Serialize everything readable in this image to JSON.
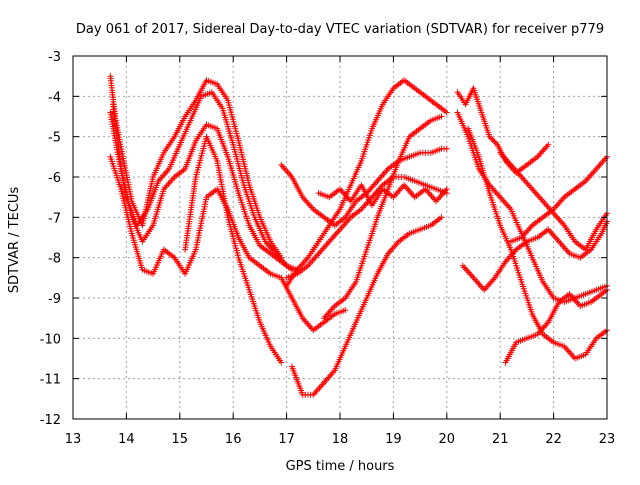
{
  "chart_data": {
    "type": "scatter",
    "title": "Day 061 of 2017, Sidereal Day-to-day VTEC variation (SDTVAR) for receiver p779",
    "xlabel": "GPS time / hours",
    "ylabel": "SDTVAR / TECUs",
    "xlim": [
      13,
      23
    ],
    "ylim": [
      -12,
      -3
    ],
    "x_ticks": [
      "13",
      "14",
      "15",
      "16",
      "17",
      "18",
      "19",
      "20",
      "21",
      "22",
      "23"
    ],
    "y_ticks": [
      "-3",
      "-4",
      "-5",
      "-6",
      "-7",
      "-8",
      "-9",
      "-10",
      "-11",
      "-12"
    ],
    "grid": true,
    "legend": "none",
    "marker": "plus",
    "color": "#ff0000",
    "series": [
      {
        "x": [
          13.7,
          13.8,
          13.95,
          14.1,
          14.3,
          14.5,
          14.7,
          14.9,
          15.1,
          15.3,
          15.5,
          15.7,
          15.9,
          16.1,
          16.3,
          16.5,
          16.7,
          16.9
        ],
        "y": [
          -3.5,
          -4.6,
          -5.6,
          -6.6,
          -7.2,
          -6.0,
          -5.4,
          -5.0,
          -4.5,
          -4.1,
          -3.6,
          -3.7,
          -4.1,
          -5.1,
          -6.2,
          -7.0,
          -7.6,
          -8.0
        ]
      },
      {
        "x": [
          13.7,
          13.85,
          14.0,
          14.2,
          14.4,
          14.6,
          14.8,
          15.0,
          15.2,
          15.4,
          15.6,
          15.8,
          16.0,
          16.2,
          16.4,
          16.6,
          16.8,
          17.0,
          17.2
        ],
        "y": [
          -4.4,
          -5.5,
          -6.5,
          -7.2,
          -6.8,
          -6.1,
          -5.8,
          -5.2,
          -4.6,
          -4.0,
          -3.9,
          -4.3,
          -5.2,
          -6.2,
          -7.0,
          -7.6,
          -7.9,
          -8.2,
          -8.3
        ]
      },
      {
        "x": [
          13.75,
          13.9,
          14.1,
          14.3,
          14.5,
          14.7,
          14.9,
          15.1,
          15.3,
          15.5,
          15.7,
          15.9,
          16.1,
          16.3,
          16.5,
          16.7,
          16.9,
          17.1
        ],
        "y": [
          -4.2,
          -5.8,
          -7.0,
          -7.6,
          -7.2,
          -6.3,
          -6.0,
          -5.8,
          -5.1,
          -4.7,
          -4.8,
          -5.5,
          -6.4,
          -7.2,
          -7.7,
          -7.9,
          -8.1,
          -8.3
        ]
      },
      {
        "x": [
          13.7,
          13.9,
          14.1,
          14.3,
          14.5,
          14.7,
          14.9,
          15.1,
          15.3,
          15.5,
          15.7,
          15.9,
          16.1,
          16.3,
          16.5,
          16.7,
          16.9,
          17.1,
          17.3,
          17.5,
          17.7,
          17.9,
          18.1
        ],
        "y": [
          -5.5,
          -6.3,
          -7.4,
          -8.3,
          -8.4,
          -7.8,
          -8.0,
          -8.4,
          -7.8,
          -6.5,
          -6.3,
          -6.8,
          -7.5,
          -8.0,
          -8.2,
          -8.4,
          -8.5,
          -9.0,
          -9.5,
          -9.8,
          -9.6,
          -9.4,
          -9.3
        ]
      },
      {
        "x": [
          15.1,
          15.3,
          15.5,
          15.7,
          15.9,
          16.1,
          16.3,
          16.5,
          16.7,
          16.9
        ],
        "y": [
          -7.8,
          -6.0,
          -5.0,
          -5.6,
          -7.0,
          -8.0,
          -8.8,
          -9.6,
          -10.2,
          -10.6
        ]
      },
      {
        "x": [
          16.9,
          17.1,
          17.3,
          17.5,
          17.7,
          17.9,
          18.1,
          18.3,
          18.5,
          18.7,
          18.9,
          19.1,
          19.3,
          19.5,
          19.7,
          19.9,
          20.0
        ],
        "y": [
          -5.7,
          -6.0,
          -6.5,
          -6.8,
          -7.0,
          -7.2,
          -7.0,
          -6.6,
          -6.4,
          -6.1,
          -5.8,
          -5.6,
          -5.5,
          -5.4,
          -5.4,
          -5.3,
          -5.3
        ]
      },
      {
        "x": [
          17.0,
          17.2,
          17.4,
          17.6,
          17.8,
          18.0,
          18.2,
          18.4,
          18.6,
          18.8,
          19.0,
          19.2,
          19.4,
          19.6,
          19.8,
          20.0
        ],
        "y": [
          -8.7,
          -8.3,
          -8.0,
          -7.6,
          -7.2,
          -6.8,
          -6.2,
          -5.6,
          -4.8,
          -4.2,
          -3.8,
          -3.6,
          -3.8,
          -4.0,
          -4.2,
          -4.4
        ]
      },
      {
        "x": [
          17.0,
          17.2,
          17.4,
          17.6,
          17.8,
          18.0,
          18.2,
          18.4,
          18.6,
          18.8,
          19.0,
          19.2,
          19.4,
          19.6,
          19.8,
          20.0
        ],
        "y": [
          -8.5,
          -8.4,
          -8.2,
          -7.9,
          -7.6,
          -7.3,
          -7.0,
          -6.8,
          -6.5,
          -6.2,
          -6.0,
          -6.0,
          -6.1,
          -6.2,
          -6.3,
          -6.4
        ]
      },
      {
        "x": [
          17.1,
          17.3,
          17.5,
          17.7,
          17.9,
          18.1,
          18.3,
          18.5,
          18.7,
          18.9,
          19.1,
          19.3,
          19.5,
          19.7,
          19.9
        ],
        "y": [
          -10.7,
          -11.4,
          -11.4,
          -11.1,
          -10.8,
          -10.2,
          -9.6,
          -9.0,
          -8.4,
          -7.9,
          -7.6,
          -7.4,
          -7.3,
          -7.2,
          -7.0
        ]
      },
      {
        "x": [
          17.6,
          17.8,
          18.0,
          18.2,
          18.4,
          18.6,
          18.8,
          19.0,
          19.2,
          19.4,
          19.6,
          19.8,
          20.0
        ],
        "y": [
          -6.4,
          -6.5,
          -6.3,
          -6.6,
          -6.2,
          -6.7,
          -6.3,
          -6.5,
          -6.2,
          -6.5,
          -6.3,
          -6.6,
          -6.3
        ]
      },
      {
        "x": [
          17.7,
          17.9,
          18.1,
          18.3,
          18.5,
          18.7,
          18.9,
          19.1,
          19.3,
          19.5,
          19.7,
          19.9
        ],
        "y": [
          -9.5,
          -9.2,
          -9.0,
          -8.6,
          -7.8,
          -7.0,
          -6.3,
          -5.6,
          -5.0,
          -4.8,
          -4.6,
          -4.5
        ]
      },
      {
        "x": [
          20.2,
          20.35,
          20.5,
          20.65,
          20.8,
          20.95,
          21.1,
          21.3,
          21.5,
          21.7,
          21.9
        ],
        "y": [
          -3.9,
          -4.2,
          -3.8,
          -4.4,
          -5.0,
          -5.2,
          -5.6,
          -5.9,
          -5.7,
          -5.5,
          -5.2
        ]
      },
      {
        "x": [
          20.2,
          20.4,
          20.6,
          20.8,
          21.0,
          21.2,
          21.4,
          21.6,
          21.8,
          22.0,
          22.2,
          22.4,
          22.6,
          22.8,
          23.0
        ],
        "y": [
          -4.4,
          -5.0,
          -5.8,
          -6.2,
          -6.5,
          -6.8,
          -7.4,
          -8.0,
          -8.6,
          -9.0,
          -9.1,
          -9.0,
          -8.9,
          -8.8,
          -8.7
        ]
      },
      {
        "x": [
          20.3,
          20.5,
          20.7,
          20.9,
          21.1,
          21.3,
          21.5,
          21.7,
          21.9,
          22.1,
          22.3,
          22.5,
          22.7,
          22.9,
          23.0
        ],
        "y": [
          -8.2,
          -8.5,
          -8.8,
          -8.5,
          -8.1,
          -7.8,
          -7.6,
          -7.5,
          -7.3,
          -7.6,
          -7.9,
          -8.0,
          -7.8,
          -7.4,
          -7.1
        ]
      },
      {
        "x": [
          20.4,
          20.6,
          20.8,
          21.0,
          21.2,
          21.4,
          21.6,
          21.8,
          22.0,
          22.2,
          22.4,
          22.6,
          22.8,
          23.0
        ],
        "y": [
          -4.8,
          -5.5,
          -6.4,
          -7.2,
          -7.8,
          -8.6,
          -9.4,
          -9.9,
          -10.1,
          -10.2,
          -10.5,
          -10.4,
          -10.0,
          -9.8
        ]
      },
      {
        "x": [
          21.1,
          21.3,
          21.5,
          21.7,
          21.9,
          22.1,
          22.3,
          22.5,
          22.7,
          22.9,
          23.0
        ],
        "y": [
          -10.6,
          -10.1,
          -10.0,
          -9.9,
          -9.6,
          -9.1,
          -8.9,
          -9.2,
          -9.1,
          -8.9,
          -8.8
        ]
      },
      {
        "x": [
          21.2,
          21.4,
          21.6,
          21.8,
          22.0,
          22.2,
          22.4,
          22.6,
          22.8,
          23.0
        ],
        "y": [
          -7.6,
          -7.5,
          -7.2,
          -7.0,
          -6.8,
          -6.5,
          -6.3,
          -6.1,
          -5.8,
          -5.5
        ]
      },
      {
        "x": [
          21.0,
          21.2,
          21.4,
          21.6,
          21.8,
          22.0,
          22.2,
          22.4,
          22.6,
          22.8,
          23.0
        ],
        "y": [
          -5.4,
          -5.7,
          -6.0,
          -6.3,
          -6.6,
          -6.9,
          -7.2,
          -7.6,
          -7.8,
          -7.3,
          -6.9
        ]
      }
    ]
  }
}
